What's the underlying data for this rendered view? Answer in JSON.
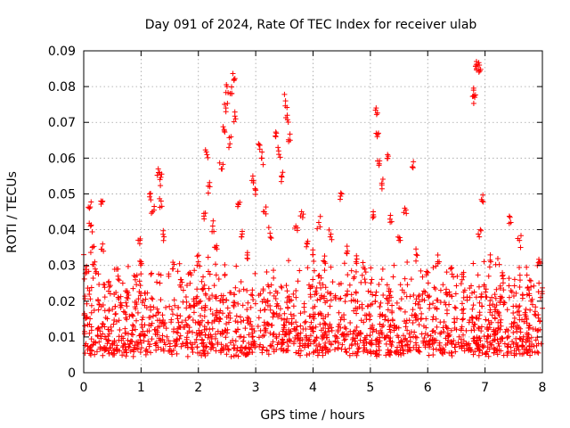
{
  "colors": {
    "series": "#ff0000",
    "grid": "#a0a0a0",
    "frame": "#000000"
  },
  "chart_data": {
    "type": "scatter",
    "title": "Day 091 of 2024, Rate Of TEC Index for receiver ulab",
    "xlabel": "GPS time / hours",
    "ylabel": "ROTI / TECUs",
    "xlim": [
      0,
      8
    ],
    "ylim": [
      0,
      0.09
    ],
    "xticks": [
      0,
      1,
      2,
      3,
      4,
      5,
      6,
      7,
      8
    ],
    "yticks": [
      0,
      0.01,
      0.02,
      0.03,
      0.04,
      0.05,
      0.06,
      0.07,
      0.08,
      0.09
    ],
    "xtick_labels": [
      "0",
      "1",
      "2",
      "3",
      "4",
      "5",
      "6",
      "7",
      "8"
    ],
    "ytick_labels": [
      "0",
      "0.01",
      "0.02",
      "0.03",
      "0.04",
      "0.05",
      "0.06",
      "0.07",
      "0.08",
      "0.09"
    ],
    "grid": true,
    "marker": "plus",
    "series": [
      {
        "name": "ROTI",
        "points": [
          [
            0.0,
            0.033
          ],
          [
            0.05,
            0.028
          ],
          [
            0.1,
            0.046
          ],
          [
            0.12,
            0.041
          ],
          [
            0.15,
            0.035
          ],
          [
            0.2,
            0.029
          ],
          [
            0.3,
            0.048
          ],
          [
            0.33,
            0.036
          ],
          [
            0.45,
            0.024
          ],
          [
            0.6,
            0.027
          ],
          [
            0.75,
            0.021
          ],
          [
            0.9,
            0.026
          ],
          [
            0.98,
            0.037
          ],
          [
            1.0,
            0.031
          ],
          [
            1.15,
            0.05
          ],
          [
            1.2,
            0.045
          ],
          [
            1.3,
            0.057
          ],
          [
            1.33,
            0.054
          ],
          [
            1.35,
            0.048
          ],
          [
            1.4,
            0.038
          ],
          [
            1.55,
            0.029
          ],
          [
            1.7,
            0.026
          ],
          [
            1.85,
            0.028
          ],
          [
            2.0,
            0.031
          ],
          [
            2.1,
            0.043
          ],
          [
            2.15,
            0.061
          ],
          [
            2.2,
            0.052
          ],
          [
            2.25,
            0.041
          ],
          [
            2.3,
            0.035
          ],
          [
            2.4,
            0.057
          ],
          [
            2.45,
            0.068
          ],
          [
            2.48,
            0.074
          ],
          [
            2.5,
            0.08
          ],
          [
            2.55,
            0.064
          ],
          [
            2.58,
            0.078
          ],
          [
            2.62,
            0.082
          ],
          [
            2.65,
            0.071
          ],
          [
            2.7,
            0.047
          ],
          [
            2.75,
            0.038
          ],
          [
            2.85,
            0.032
          ],
          [
            2.95,
            0.055
          ],
          [
            3.0,
            0.051
          ],
          [
            3.05,
            0.064
          ],
          [
            3.1,
            0.06
          ],
          [
            3.15,
            0.045
          ],
          [
            3.25,
            0.039
          ],
          [
            3.35,
            0.066
          ],
          [
            3.4,
            0.062
          ],
          [
            3.45,
            0.055
          ],
          [
            3.52,
            0.076
          ],
          [
            3.55,
            0.072
          ],
          [
            3.6,
            0.065
          ],
          [
            3.7,
            0.041
          ],
          [
            3.8,
            0.045
          ],
          [
            3.9,
            0.036
          ],
          [
            4.0,
            0.033
          ],
          [
            4.1,
            0.042
          ],
          [
            4.2,
            0.031
          ],
          [
            4.3,
            0.038
          ],
          [
            4.5,
            0.05
          ],
          [
            4.6,
            0.034
          ],
          [
            4.75,
            0.031
          ],
          [
            4.9,
            0.029
          ],
          [
            5.05,
            0.045
          ],
          [
            5.1,
            0.074
          ],
          [
            5.12,
            0.066
          ],
          [
            5.15,
            0.058
          ],
          [
            5.2,
            0.053
          ],
          [
            5.3,
            0.061
          ],
          [
            5.35,
            0.044
          ],
          [
            5.5,
            0.037
          ],
          [
            5.6,
            0.046
          ],
          [
            5.75,
            0.059
          ],
          [
            5.8,
            0.033
          ],
          [
            6.0,
            0.028
          ],
          [
            6.2,
            0.031
          ],
          [
            6.4,
            0.029
          ],
          [
            6.6,
            0.026
          ],
          [
            6.8,
            0.079
          ],
          [
            6.82,
            0.077
          ],
          [
            6.85,
            0.087
          ],
          [
            6.88,
            0.086
          ],
          [
            6.9,
            0.086
          ],
          [
            6.95,
            0.048
          ],
          [
            6.9,
            0.038
          ],
          [
            7.1,
            0.031
          ],
          [
            7.3,
            0.027
          ],
          [
            7.45,
            0.042
          ],
          [
            7.6,
            0.037
          ],
          [
            7.8,
            0.024
          ],
          [
            7.95,
            0.031
          ],
          [
            8.0,
            0.018
          ]
        ]
      }
    ],
    "background_band": {
      "description": "dense cloud of points across the full time range",
      "y_typical_range": [
        0.003,
        0.033
      ],
      "y_median": 0.012,
      "x_range": [
        0,
        8
      ]
    }
  }
}
